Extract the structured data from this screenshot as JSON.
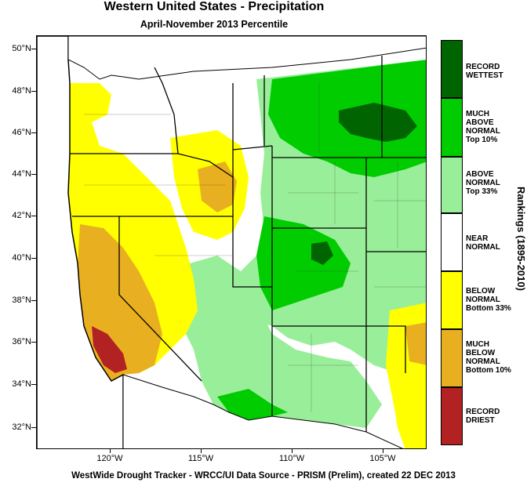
{
  "title": "Western United States - Precipitation",
  "subtitle": "April-November 2013 Percentile",
  "footer": "WestWide Drought Tracker - WRCC/UI  Data Source - PRISM (Prelim), created 22 DEC 2013",
  "latitude_ticks": [
    "50°N",
    "48°N",
    "46°N",
    "44°N",
    "42°N",
    "40°N",
    "38°N",
    "36°N",
    "34°N",
    "32°N"
  ],
  "longitude_ticks": [
    "120°W",
    "115°W",
    "110°W",
    "105°W"
  ],
  "legend": {
    "title": "Rankings (1895-2010)",
    "classes": [
      {
        "label": "RECORD\nWETTEST",
        "color": "#006400"
      },
      {
        "label": "MUCH\nABOVE\nNORMAL\nTop 10%",
        "color": "#00cc00"
      },
      {
        "label": "ABOVE\nNORMAL\nTop 33%",
        "color": "#99ee99"
      },
      {
        "label": "NEAR\nNORMAL",
        "color": "#ffffff"
      },
      {
        "label": "BELOW\nNORMAL\nBottom 33%",
        "color": "#ffff00"
      },
      {
        "label": "MUCH\nBELOW\nNORMAL\nBottom 10%",
        "color": "#e8b020"
      },
      {
        "label": "RECORD\nDRIEST",
        "color": "#b22222"
      }
    ]
  },
  "colors": {
    "ocean": "#ffffff",
    "near_normal": "#ffffff",
    "above_normal": "#99ee99",
    "much_above": "#00cc00",
    "record_wettest": "#006400",
    "below_normal": "#ffff00",
    "much_below": "#e8b020",
    "record_driest": "#b22222"
  }
}
